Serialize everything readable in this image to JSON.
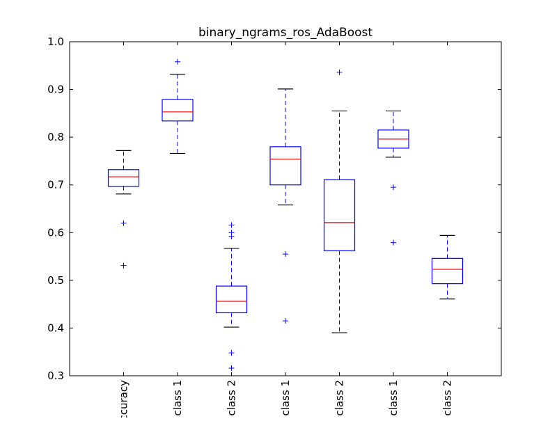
{
  "chart_data": {
    "type": "box",
    "title": "binary_ngrams_ros_AdaBoost",
    "xlabel": "",
    "ylabel": "",
    "ylim": [
      0.3,
      1.0
    ],
    "yticks": [
      0.3,
      0.4,
      0.5,
      0.6,
      0.7,
      0.8,
      0.9,
      1.0
    ],
    "ytick_labels": [
      "0.3",
      "0.4",
      "0.5",
      "0.6",
      "0.7",
      "0.8",
      "0.9",
      "1.0"
    ],
    "grid": false,
    "categories": [
      "accuracy",
      "class 1",
      "class 2",
      "class 1",
      "class 2",
      "class 1",
      "class 2"
    ],
    "box_color": "#0000ff",
    "median_color": "#ff0000",
    "boxes": [
      {
        "whisker_low": 0.681,
        "q1": 0.697,
        "median": 0.717,
        "q3": 0.732,
        "whisker_high": 0.772,
        "outliers": [
          0.62,
          0.531
        ]
      },
      {
        "whisker_low": 0.766,
        "q1": 0.834,
        "median": 0.853,
        "q3": 0.879,
        "whisker_high": 0.932,
        "outliers": [
          0.958
        ]
      },
      {
        "whisker_low": 0.402,
        "q1": 0.432,
        "median": 0.456,
        "q3": 0.488,
        "whisker_high": 0.567,
        "outliers": [
          0.616,
          0.6,
          0.592,
          0.348,
          0.316
        ]
      },
      {
        "whisker_low": 0.658,
        "q1": 0.7,
        "median": 0.754,
        "q3": 0.78,
        "whisker_high": 0.901,
        "outliers": [
          0.555,
          0.415
        ]
      },
      {
        "whisker_low": 0.39,
        "q1": 0.562,
        "median": 0.621,
        "q3": 0.711,
        "whisker_high": 0.855,
        "outliers": [
          0.936
        ]
      },
      {
        "whisker_low": 0.758,
        "q1": 0.777,
        "median": 0.796,
        "q3": 0.815,
        "whisker_high": 0.855,
        "outliers": [
          0.695,
          0.579
        ]
      },
      {
        "whisker_low": 0.461,
        "q1": 0.493,
        "median": 0.523,
        "q3": 0.546,
        "whisker_high": 0.594,
        "outliers": []
      }
    ]
  }
}
